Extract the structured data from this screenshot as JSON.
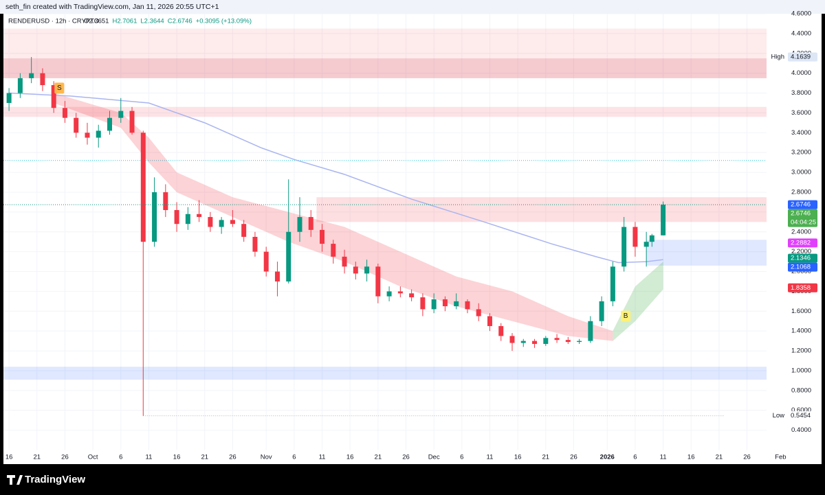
{
  "header": "seth_fin created with TradingView.com, Jan 11, 2026 20:55 UTC+1",
  "footer": "TradingView",
  "chart_data": {
    "type": "candlestick",
    "symbol": "RENDERUSD · 12h · CRYPTO",
    "ohlc_text": [
      "O2.3651",
      "H2.7061",
      "L2.3644",
      "C2.6746",
      "+0.3095 (+13.09%)"
    ],
    "up_color": "#089981",
    "down_color": "#f23645",
    "grid": true,
    "x": [
      0,
      2,
      4,
      6,
      8,
      10,
      12,
      14,
      16,
      18,
      20,
      22,
      24,
      26,
      28,
      30,
      32,
      34,
      36,
      38,
      40,
      42,
      44,
      46,
      48,
      50,
      52,
      54,
      56,
      58,
      60,
      62,
      64,
      66,
      68,
      70,
      72,
      74,
      76,
      78,
      80,
      82,
      84,
      86,
      88,
      90,
      92,
      94,
      96,
      98,
      100,
      102,
      104,
      106,
      108,
      110,
      112,
      114,
      115,
      117
    ],
    "open": [
      3.7,
      3.8,
      3.95,
      4.0,
      3.88,
      3.65,
      3.55,
      3.4,
      3.35,
      3.42,
      3.55,
      3.62,
      3.4,
      2.3,
      2.8,
      2.62,
      2.48,
      2.58,
      2.55,
      2.45,
      2.52,
      2.48,
      2.35,
      2.2,
      2.0,
      1.9,
      2.4,
      2.55,
      2.42,
      2.28,
      2.15,
      2.05,
      1.98,
      2.05,
      1.75,
      1.8,
      1.78,
      1.74,
      1.62,
      1.72,
      1.65,
      1.7,
      1.62,
      1.55,
      1.45,
      1.35,
      1.28,
      1.3,
      1.27,
      1.33,
      1.31,
      1.29,
      1.3,
      1.5,
      1.7,
      2.05,
      2.45,
      2.25,
      2.3,
      2.3651
    ],
    "high": [
      3.85,
      4.0,
      4.1639,
      4.05,
      3.92,
      3.72,
      3.6,
      3.5,
      3.48,
      3.62,
      3.75,
      3.66,
      3.42,
      2.95,
      2.88,
      2.7,
      2.65,
      2.72,
      2.6,
      2.55,
      2.62,
      2.52,
      2.4,
      2.25,
      2.1,
      2.93,
      2.75,
      2.62,
      2.48,
      2.32,
      2.22,
      2.1,
      2.12,
      2.08,
      1.85,
      1.85,
      1.82,
      1.78,
      1.78,
      1.75,
      1.78,
      1.72,
      1.68,
      1.58,
      1.48,
      1.38,
      1.32,
      1.32,
      1.35,
      1.37,
      1.34,
      1.32,
      1.55,
      1.75,
      2.1,
      2.55,
      2.5,
      2.4,
      2.38,
      2.7061
    ],
    "low": [
      3.62,
      3.75,
      3.9,
      3.82,
      3.6,
      3.5,
      3.35,
      3.28,
      3.25,
      3.38,
      3.5,
      3.38,
      0.5454,
      2.25,
      2.55,
      2.4,
      2.42,
      2.5,
      2.4,
      2.38,
      2.45,
      2.3,
      2.15,
      1.95,
      1.75,
      1.88,
      2.3,
      2.35,
      2.2,
      2.08,
      1.98,
      1.92,
      1.9,
      1.68,
      1.7,
      1.74,
      1.7,
      1.55,
      1.58,
      1.6,
      1.62,
      1.58,
      1.5,
      1.4,
      1.3,
      1.2,
      1.24,
      1.23,
      1.25,
      1.28,
      1.27,
      1.27,
      1.28,
      1.45,
      1.65,
      2.0,
      2.15,
      2.05,
      2.25,
      2.3644
    ],
    "close": [
      3.8,
      3.95,
      4.0,
      3.88,
      3.65,
      3.55,
      3.4,
      3.35,
      3.42,
      3.55,
      3.62,
      3.4,
      2.3,
      2.8,
      2.62,
      2.48,
      2.58,
      2.55,
      2.45,
      2.52,
      2.48,
      2.35,
      2.2,
      2.0,
      1.9,
      2.4,
      2.55,
      2.42,
      2.28,
      2.15,
      2.05,
      1.98,
      2.05,
      1.75,
      1.8,
      1.78,
      1.74,
      1.62,
      1.72,
      1.65,
      1.7,
      1.62,
      1.55,
      1.45,
      1.35,
      1.28,
      1.3,
      1.27,
      1.33,
      1.31,
      1.29,
      1.3,
      1.5,
      1.7,
      2.05,
      2.45,
      2.25,
      2.3,
      2.3651,
      2.6746
    ],
    "xlim": [
      -1,
      135.5
    ],
    "xticks": [
      {
        "value": 0,
        "label": "16"
      },
      {
        "value": 5,
        "label": "21"
      },
      {
        "value": 10,
        "label": "26"
      },
      {
        "value": 15,
        "label": "Oct"
      },
      {
        "value": 20,
        "label": "6"
      },
      {
        "value": 25,
        "label": "11"
      },
      {
        "value": 30,
        "label": "16"
      },
      {
        "value": 35,
        "label": "21"
      },
      {
        "value": 40,
        "label": "26"
      },
      {
        "value": 46,
        "label": "Nov"
      },
      {
        "value": 51,
        "label": "6"
      },
      {
        "value": 56,
        "label": "11"
      },
      {
        "value": 61,
        "label": "16"
      },
      {
        "value": 66,
        "label": "21"
      },
      {
        "value": 71,
        "label": "26"
      },
      {
        "value": 76,
        "label": "Dec"
      },
      {
        "value": 81,
        "label": "6"
      },
      {
        "value": 86,
        "label": "11"
      },
      {
        "value": 91,
        "label": "16"
      },
      {
        "value": 96,
        "label": "21"
      },
      {
        "value": 101,
        "label": "26"
      },
      {
        "value": 107,
        "label": "2026"
      },
      {
        "value": 112,
        "label": "6"
      },
      {
        "value": 117,
        "label": "11"
      },
      {
        "value": 122,
        "label": "16"
      },
      {
        "value": 127,
        "label": "21"
      },
      {
        "value": 132,
        "label": "26"
      },
      {
        "value": 138,
        "label": "Feb"
      }
    ],
    "ylim": [
      0.2,
      4.6
    ],
    "yticks": [
      {
        "value": 0.4,
        "label": "0.4000"
      },
      {
        "value": 0.6,
        "label": "0.6000"
      },
      {
        "value": 0.8,
        "label": "0.8000"
      },
      {
        "value": 1.0,
        "label": "1.0000"
      },
      {
        "value": 1.2,
        "label": "1.2000"
      },
      {
        "value": 1.4,
        "label": "1.4000"
      },
      {
        "value": 1.6,
        "label": "1.6000"
      },
      {
        "value": 1.8,
        "label": "1.8000"
      },
      {
        "value": 2.0,
        "label": "2.0000"
      },
      {
        "value": 2.2,
        "label": "2.2000"
      },
      {
        "value": 2.4,
        "label": "2.4000"
      },
      {
        "value": 2.6,
        "label": "2.6000"
      },
      {
        "value": 2.8,
        "label": "2.8000"
      },
      {
        "value": 3.0,
        "label": "3.0000"
      },
      {
        "value": 3.2,
        "label": "3.2000"
      },
      {
        "value": 3.4,
        "label": "3.4000"
      },
      {
        "value": 3.6,
        "label": "3.6000"
      },
      {
        "value": 3.8,
        "label": "3.8000"
      },
      {
        "value": 4.0,
        "label": "4.0000"
      },
      {
        "value": 4.2,
        "label": "4.2000"
      },
      {
        "value": 4.4,
        "label": "4.4000"
      },
      {
        "value": 4.6,
        "label": "4.6000"
      }
    ],
    "zones": [
      {
        "top": 4.45,
        "bottom": 3.95,
        "start": -1,
        "color": "rgba(242,54,69,0.10)"
      },
      {
        "top": 4.15,
        "bottom": 3.95,
        "start": -1,
        "color": "rgba(200,40,60,0.16)"
      },
      {
        "top": 3.66,
        "bottom": 3.56,
        "start": -1,
        "color": "rgba(242,54,69,0.14)"
      },
      {
        "top": 2.75,
        "bottom": 2.5,
        "start": 55,
        "color": "rgba(242,54,69,0.16)"
      },
      {
        "top": 2.32,
        "bottom": 2.06,
        "start": 114,
        "color": "rgba(41,98,255,0.15)"
      },
      {
        "top": 1.04,
        "bottom": 0.91,
        "start": -1,
        "color": "rgba(41,98,255,0.15)"
      }
    ],
    "levels": [
      {
        "value": 3.12,
        "start": -1,
        "end": 135.5,
        "color": "#26c6da"
      },
      {
        "value": 0.5454,
        "start": 24,
        "end": 128,
        "color": "#b2b5be"
      }
    ],
    "lines": [
      {
        "color": "#a9b4f0",
        "x": [
          0,
          11,
          25,
          35,
          45,
          51,
          60,
          72,
          85,
          97,
          105,
          109,
          114,
          117
        ],
        "values": [
          3.8,
          3.77,
          3.7,
          3.5,
          3.25,
          3.13,
          2.98,
          2.73,
          2.5,
          2.28,
          2.15,
          2.09,
          2.1,
          2.12
        ]
      }
    ],
    "bands": [
      {
        "color": "rgba(242,54,69,0.22)",
        "x": [
          8,
          20,
          25,
          30,
          40,
          50,
          60,
          70,
          80,
          90,
          100,
          108
        ],
        "upper": [
          3.8,
          3.6,
          3.35,
          3.0,
          2.75,
          2.6,
          2.45,
          2.2,
          1.95,
          1.8,
          1.55,
          1.4
        ],
        "lower": [
          3.7,
          3.45,
          3.1,
          2.8,
          2.55,
          2.3,
          2.1,
          1.85,
          1.65,
          1.5,
          1.35,
          1.3
        ]
      },
      {
        "color": "rgba(76,175,80,0.25)",
        "x": [
          108,
          112,
          117
        ],
        "upper": [
          1.4,
          1.85,
          2.1
        ],
        "lower": [
          1.3,
          1.5,
          1.82
        ]
      }
    ],
    "markers": [
      {
        "label": "S",
        "x": 9,
        "y": 3.85,
        "color": "#ffb74d"
      },
      {
        "label": "B",
        "x": 110.3,
        "y": 1.55,
        "color": "#fff176"
      }
    ],
    "price_labels": [
      {
        "value": 4.1639,
        "tag": "High",
        "color": "#dde6f5",
        "text_color": "#131722"
      },
      {
        "value": 2.6746,
        "color": "#2962ff",
        "text_color": "#ffffff"
      },
      {
        "value": 2.6746,
        "color": "#4caf50",
        "text_color": "#ffffff",
        "sub": "04:04:25"
      },
      {
        "value": 2.2882,
        "color": "#e040fb",
        "text_color": "#ffffff"
      },
      {
        "value": 2.1346,
        "color": "#089981",
        "text_color": "#ffffff"
      },
      {
        "value": 2.1068,
        "color": "#2962ff",
        "text_color": "#ffffff"
      },
      {
        "value": 1.8358,
        "color": "#f23645",
        "text_color": "#ffffff"
      },
      {
        "value": 0.5454,
        "tag": "Low",
        "color": "#ffffff",
        "text_color": "#131722"
      }
    ]
  }
}
